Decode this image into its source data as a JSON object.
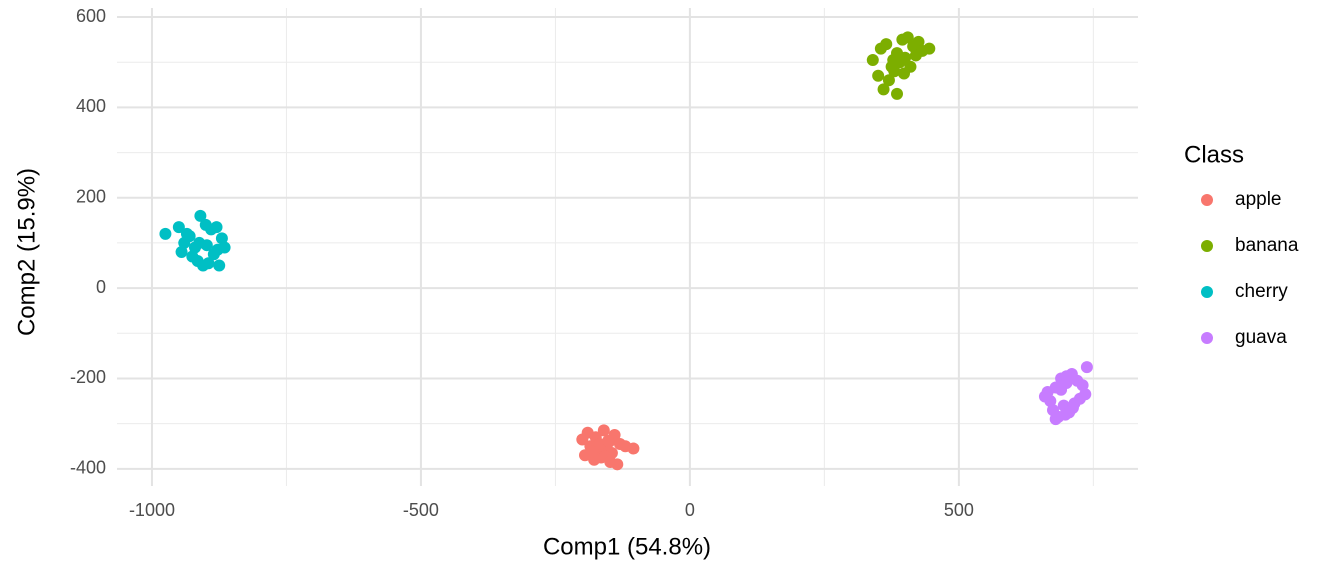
{
  "chart_data": {
    "type": "scatter",
    "x_label": "Comp1 (54.8%)",
    "y_label": "Comp2 (15.9%)",
    "legend_title": "Class",
    "legend_position": "right",
    "xlim": [
      -1065,
      833
    ],
    "ylim": [
      -438,
      620
    ],
    "xticks": [
      -1000,
      -500,
      0,
      500
    ],
    "yticks": [
      -400,
      -200,
      0,
      200,
      400,
      600
    ],
    "xminorticks": [
      -750,
      -250,
      250,
      750
    ],
    "yminorticks": [
      -300,
      -100,
      100,
      300,
      500
    ],
    "grid": true,
    "series": [
      {
        "name": "apple",
        "color": "#F8766D",
        "x": [
          -190,
          -175,
          -160,
          -150,
          -140,
          -130,
          -185,
          -170,
          -155,
          -145,
          -200,
          -165,
          -120,
          -178,
          -158,
          -135,
          -195,
          -148,
          -168,
          -105,
          -182,
          -152
        ],
        "values": [
          -320,
          -330,
          -315,
          -340,
          -325,
          -345,
          -350,
          -360,
          -355,
          -365,
          -335,
          -375,
          -350,
          -380,
          -372,
          -390,
          -370,
          -385,
          -345,
          -355,
          -362,
          -338
        ]
      },
      {
        "name": "banana",
        "color": "#7CAE00",
        "x": [
          340,
          355,
          365,
          375,
          385,
          395,
          405,
          415,
          425,
          445,
          350,
          370,
          380,
          390,
          400,
          410,
          420,
          360,
          385,
          398,
          432,
          378
        ],
        "values": [
          505,
          530,
          540,
          490,
          520,
          550,
          555,
          535,
          545,
          530,
          470,
          460,
          480,
          500,
          510,
          490,
          515,
          440,
          430,
          475,
          525,
          505
        ]
      },
      {
        "name": "cherry",
        "color": "#00BFC4",
        "x": [
          -975,
          -950,
          -940,
          -930,
          -920,
          -910,
          -900,
          -890,
          -880,
          -870,
          -865,
          -945,
          -925,
          -915,
          -905,
          -895,
          -885,
          -875,
          -935,
          -912,
          -898,
          -878
        ],
        "values": [
          120,
          135,
          100,
          115,
          90,
          160,
          140,
          130,
          135,
          110,
          90,
          80,
          70,
          60,
          50,
          55,
          75,
          50,
          120,
          100,
          95,
          85
        ]
      },
      {
        "name": "guava",
        "color": "#C77CFF",
        "x": [
          665,
          670,
          680,
          690,
          700,
          710,
          720,
          730,
          735,
          675,
          685,
          695,
          705,
          715,
          725,
          660,
          690,
          700,
          712,
          738,
          680,
          698
        ],
        "values": [
          -230,
          -250,
          -220,
          -200,
          -210,
          -190,
          -205,
          -215,
          -235,
          -270,
          -285,
          -260,
          -275,
          -255,
          -245,
          -240,
          -225,
          -195,
          -265,
          -175,
          -290,
          -280
        ]
      }
    ]
  }
}
